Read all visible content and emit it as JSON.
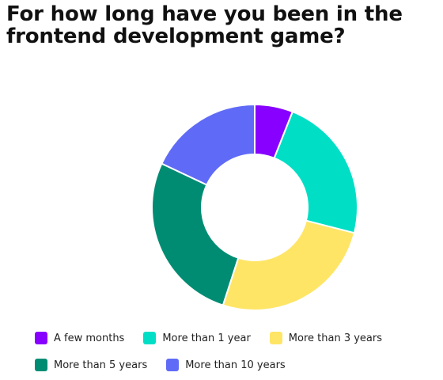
{
  "page": {
    "title": "For how long have you been in the frontend development game?"
  },
  "colors": {
    "background": "#ffffff",
    "a_few_months": "#8800ff",
    "more_than_1_year": "#00dfc6",
    "more_than_3_years": "#ffe566",
    "more_than_5_years": "#008c73",
    "more_than_10_years": "#5f6bf6"
  },
  "chart_data": {
    "type": "pie",
    "variant": "donut",
    "title": "For how long have you been in the frontend development game?",
    "categories": [
      "A few months",
      "More than 1 year",
      "More than 3 years",
      "More than 5 years",
      "More than 10 years"
    ],
    "values": [
      6,
      23,
      26,
      27,
      18
    ],
    "unit": "%",
    "colors": [
      "#8800ff",
      "#00dfc6",
      "#ffe566",
      "#008c73",
      "#5f6bf6"
    ],
    "legend_position": "bottom",
    "start_angle": "top",
    "direction": "clockwise"
  },
  "legend": {
    "rows": [
      [
        {
          "label": "A few months",
          "color": "#8800ff"
        },
        {
          "label": "More than 1 year",
          "color": "#00dfc6"
        },
        {
          "label": "More than 3 years",
          "color": "#ffe566"
        }
      ],
      [
        {
          "label": "More than 5 years",
          "color": "#008c73"
        },
        {
          "label": "More than 10 years",
          "color": "#5f6bf6"
        }
      ]
    ]
  }
}
